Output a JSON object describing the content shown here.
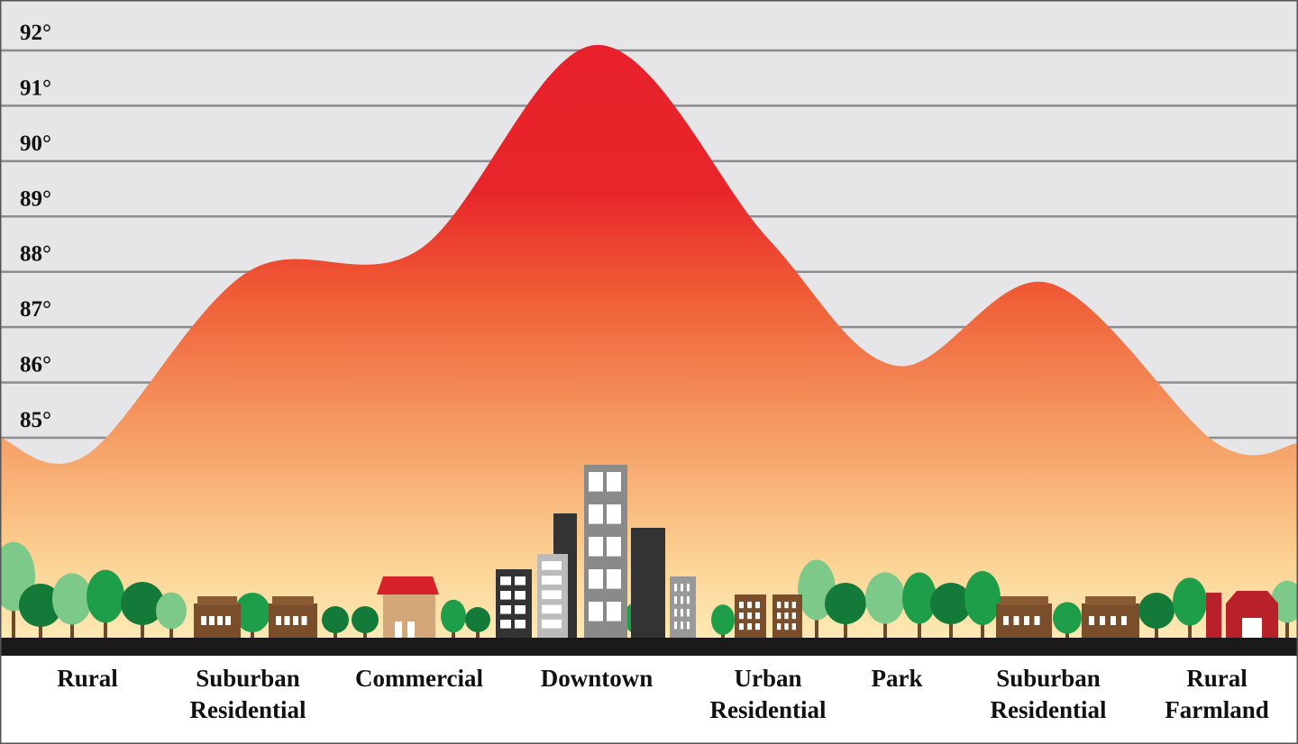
{
  "chart_data": {
    "type": "area",
    "title": "",
    "xlabel": "",
    "ylabel": "",
    "unit": "°",
    "categories": [
      "Rural",
      "Suburban Residential",
      "Commercial",
      "Downtown",
      "Urban Residential",
      "Park",
      "Suburban Residential",
      "Rural Farmland"
    ],
    "category_lines": [
      [
        "Rural"
      ],
      [
        "Suburban",
        "Residential"
      ],
      [
        "Commercial"
      ],
      [
        "Downtown"
      ],
      [
        "Urban",
        "Residential"
      ],
      [
        "Park"
      ],
      [
        "Suburban",
        "Residential"
      ],
      [
        "Rural",
        "Farmland"
      ]
    ],
    "values": [
      84.7,
      88.0,
      88.4,
      92.1,
      88.6,
      86.3,
      87.8,
      84.9
    ],
    "edge_values": {
      "left": 85.0,
      "right": 84.9
    },
    "y_ticks": [
      85,
      86,
      87,
      88,
      89,
      90,
      91,
      92
    ],
    "y_tick_labels": [
      "85°",
      "86°",
      "87°",
      "88°",
      "89°",
      "90°",
      "91°",
      "92°"
    ],
    "ylim": [
      84.5,
      92.3
    ],
    "grid": true,
    "legend": "none",
    "colors": {
      "background": "#e6e6e8",
      "grid": "#8c8c8e",
      "gradient_top": "#e8202a",
      "gradient_mid": "#f07a45",
      "gradient_bottom": "#fde7b2",
      "ground": "#1a1a1a"
    }
  }
}
